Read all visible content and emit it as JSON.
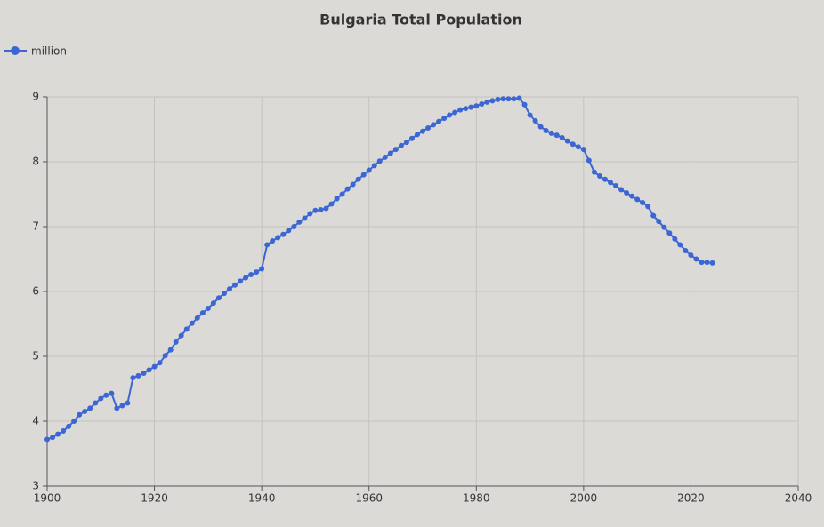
{
  "chart_data": {
    "type": "line",
    "title": "Bulgaria Total Population",
    "x": [
      1900,
      1901,
      1902,
      1903,
      1904,
      1905,
      1906,
      1907,
      1908,
      1909,
      1910,
      1911,
      1912,
      1913,
      1914,
      1915,
      1916,
      1917,
      1918,
      1919,
      1920,
      1921,
      1922,
      1923,
      1924,
      1925,
      1926,
      1927,
      1928,
      1929,
      1930,
      1931,
      1932,
      1933,
      1934,
      1935,
      1936,
      1937,
      1938,
      1939,
      1940,
      1941,
      1942,
      1943,
      1944,
      1945,
      1946,
      1947,
      1948,
      1949,
      1950,
      1951,
      1952,
      1953,
      1954,
      1955,
      1956,
      1957,
      1958,
      1959,
      1960,
      1961,
      1962,
      1963,
      1964,
      1965,
      1966,
      1967,
      1968,
      1969,
      1970,
      1971,
      1972,
      1973,
      1974,
      1975,
      1976,
      1977,
      1978,
      1979,
      1980,
      1981,
      1982,
      1983,
      1984,
      1985,
      1986,
      1987,
      1988,
      1989,
      1990,
      1991,
      1992,
      1993,
      1994,
      1995,
      1996,
      1997,
      1998,
      1999,
      2000,
      2001,
      2002,
      2003,
      2004,
      2005,
      2006,
      2007,
      2008,
      2009,
      2010,
      2011,
      2012,
      2013,
      2014,
      2015,
      2016,
      2017,
      2018,
      2019,
      2020,
      2021,
      2022,
      2023,
      2024
    ],
    "series": [
      {
        "name": "million",
        "color": "#3b66d4",
        "values": [
          3.72,
          3.75,
          3.8,
          3.85,
          3.92,
          4.0,
          4.1,
          4.15,
          4.2,
          4.28,
          4.35,
          4.4,
          4.43,
          4.2,
          4.24,
          4.28,
          4.67,
          4.7,
          4.74,
          4.79,
          4.84,
          4.9,
          5.01,
          5.1,
          5.22,
          5.32,
          5.42,
          5.51,
          5.59,
          5.67,
          5.74,
          5.82,
          5.9,
          5.97,
          6.04,
          6.1,
          6.16,
          6.21,
          6.26,
          6.3,
          6.35,
          6.72,
          6.78,
          6.83,
          6.88,
          6.94,
          7.0,
          7.07,
          7.13,
          7.2,
          7.25,
          7.26,
          7.28,
          7.35,
          7.43,
          7.5,
          7.58,
          7.65,
          7.73,
          7.8,
          7.87,
          7.94,
          8.01,
          8.07,
          8.13,
          8.19,
          8.25,
          8.3,
          8.36,
          8.42,
          8.47,
          8.52,
          8.57,
          8.62,
          8.67,
          8.72,
          8.76,
          8.8,
          8.82,
          8.84,
          8.86,
          8.89,
          8.92,
          8.94,
          8.96,
          8.97,
          8.97,
          8.97,
          8.98,
          8.88,
          8.72,
          8.63,
          8.54,
          8.48,
          8.44,
          8.41,
          8.37,
          8.32,
          8.27,
          8.23,
          8.19,
          8.02,
          7.84,
          7.78,
          7.73,
          7.68,
          7.63,
          7.57,
          7.52,
          7.47,
          7.42,
          7.37,
          7.31,
          7.17,
          7.08,
          6.99,
          6.9,
          6.81,
          6.72,
          6.63,
          6.56,
          6.5,
          6.45,
          6.45,
          6.44
        ]
      }
    ],
    "xlim": [
      1900,
      2040
    ],
    "xticks": [
      1900,
      1920,
      1940,
      1960,
      1980,
      2000,
      2020,
      2040
    ],
    "ylim": [
      3,
      9
    ],
    "yticks": [
      3,
      4,
      5,
      6,
      7,
      8,
      9
    ],
    "grid": true,
    "legend": "top-left"
  }
}
